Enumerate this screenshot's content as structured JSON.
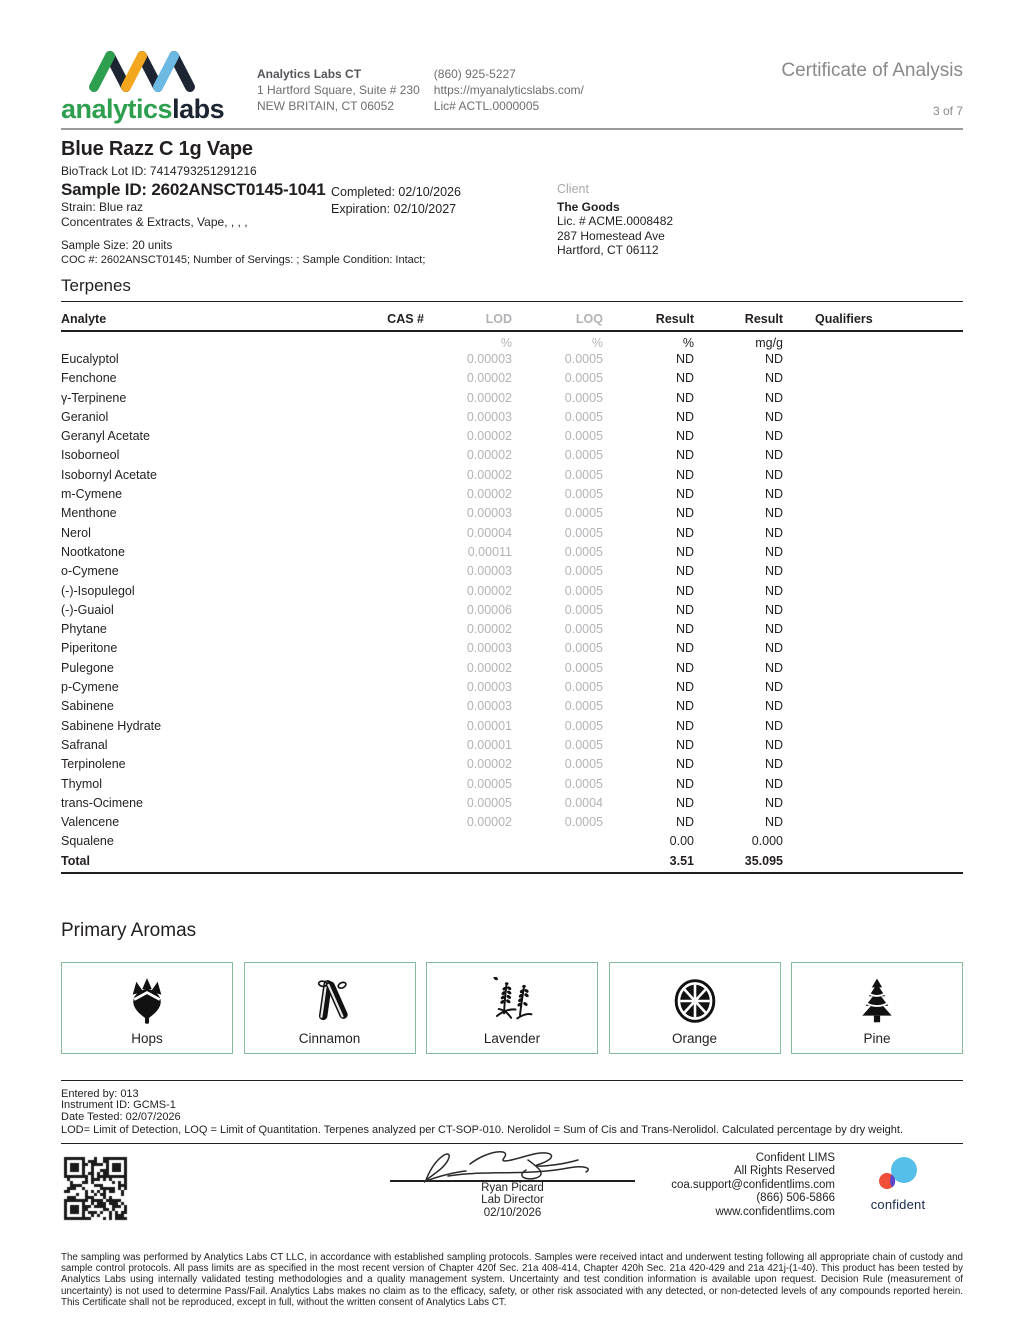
{
  "header": {
    "brand_green": "analytics",
    "brand_dark": "labs",
    "lab_name": "Analytics Labs CT",
    "address1": "1 Hartford Square, Suite # 230",
    "address2": "NEW BRITAIN, CT 06052",
    "phone": "(860) 925-5227",
    "website": "https://myanalyticslabs.com/",
    "license": "Lic# ACTL.0000005",
    "doc_title": "Certificate of Analysis",
    "page_number": "3 of 7"
  },
  "sample": {
    "product_name": "Blue Razz C 1g Vape",
    "biotrack": "BioTrack Lot ID: 7414793251291216",
    "sample_id": "Sample ID: 2602ANSCT0145-1041",
    "strain": "Strain: Blue raz",
    "category": "Concentrates & Extracts, Vape, , , ,",
    "completed": "Completed: 02/10/2026",
    "expiration": "Expiration: 02/10/2027",
    "sample_size": "Sample Size: 20 units",
    "coc": "COC #: 2602ANSCT0145; Number of Servings: ; Sample Condition: Intact;"
  },
  "client": {
    "label": "Client",
    "name": "The Goods",
    "license": "Lic. # ACME.0008482",
    "address1": "287 Homestead Ave",
    "address2": "Hartford, CT 06112"
  },
  "terpenes": {
    "section_title": "Terpenes",
    "col_analyte": "Analyte",
    "col_cas": "CAS #",
    "col_lod": "LOD",
    "col_loq": "LOQ",
    "col_result_pct": "Result",
    "col_result_mgg": "Result",
    "col_qualifiers": "Qualifiers",
    "unit_lod": "%",
    "unit_loq": "%",
    "unit_result_pct": "%",
    "unit_result_mgg": "mg/g",
    "rows": [
      {
        "analyte": "Eucalyptol",
        "cas": "",
        "lod": "0.00003",
        "loq": "0.0005",
        "result_pct": "ND",
        "result_mgg": "ND",
        "qualifiers": ""
      },
      {
        "analyte": "Fenchone",
        "cas": "",
        "lod": "0.00002",
        "loq": "0.0005",
        "result_pct": "ND",
        "result_mgg": "ND",
        "qualifiers": ""
      },
      {
        "analyte": "γ-Terpinene",
        "cas": "",
        "lod": "0.00002",
        "loq": "0.0005",
        "result_pct": "ND",
        "result_mgg": "ND",
        "qualifiers": ""
      },
      {
        "analyte": "Geraniol",
        "cas": "",
        "lod": "0.00003",
        "loq": "0.0005",
        "result_pct": "ND",
        "result_mgg": "ND",
        "qualifiers": ""
      },
      {
        "analyte": "Geranyl Acetate",
        "cas": "",
        "lod": "0.00002",
        "loq": "0.0005",
        "result_pct": "ND",
        "result_mgg": "ND",
        "qualifiers": ""
      },
      {
        "analyte": "Isoborneol",
        "cas": "",
        "lod": "0.00002",
        "loq": "0.0005",
        "result_pct": "ND",
        "result_mgg": "ND",
        "qualifiers": ""
      },
      {
        "analyte": "Isobornyl Acetate",
        "cas": "",
        "lod": "0.00002",
        "loq": "0.0005",
        "result_pct": "ND",
        "result_mgg": "ND",
        "qualifiers": ""
      },
      {
        "analyte": "m-Cymene",
        "cas": "",
        "lod": "0.00002",
        "loq": "0.0005",
        "result_pct": "ND",
        "result_mgg": "ND",
        "qualifiers": ""
      },
      {
        "analyte": "Menthone",
        "cas": "",
        "lod": "0.00003",
        "loq": "0.0005",
        "result_pct": "ND",
        "result_mgg": "ND",
        "qualifiers": ""
      },
      {
        "analyte": "Nerol",
        "cas": "",
        "lod": "0.00004",
        "loq": "0.0005",
        "result_pct": "ND",
        "result_mgg": "ND",
        "qualifiers": ""
      },
      {
        "analyte": "Nootkatone",
        "cas": "",
        "lod": "0.00011",
        "loq": "0.0005",
        "result_pct": "ND",
        "result_mgg": "ND",
        "qualifiers": ""
      },
      {
        "analyte": "o-Cymene",
        "cas": "",
        "lod": "0.00003",
        "loq": "0.0005",
        "result_pct": "ND",
        "result_mgg": "ND",
        "qualifiers": ""
      },
      {
        "analyte": "(-)-Isopulegol",
        "cas": "",
        "lod": "0.00002",
        "loq": "0.0005",
        "result_pct": "ND",
        "result_mgg": "ND",
        "qualifiers": ""
      },
      {
        "analyte": "(-)-Guaiol",
        "cas": "",
        "lod": "0.00006",
        "loq": "0.0005",
        "result_pct": "ND",
        "result_mgg": "ND",
        "qualifiers": ""
      },
      {
        "analyte": "Phytane",
        "cas": "",
        "lod": "0.00002",
        "loq": "0.0005",
        "result_pct": "ND",
        "result_mgg": "ND",
        "qualifiers": ""
      },
      {
        "analyte": "Piperitone",
        "cas": "",
        "lod": "0.00003",
        "loq": "0.0005",
        "result_pct": "ND",
        "result_mgg": "ND",
        "qualifiers": ""
      },
      {
        "analyte": "Pulegone",
        "cas": "",
        "lod": "0.00002",
        "loq": "0.0005",
        "result_pct": "ND",
        "result_mgg": "ND",
        "qualifiers": ""
      },
      {
        "analyte": "p-Cymene",
        "cas": "",
        "lod": "0.00003",
        "loq": "0.0005",
        "result_pct": "ND",
        "result_mgg": "ND",
        "qualifiers": ""
      },
      {
        "analyte": "Sabinene",
        "cas": "",
        "lod": "0.00003",
        "loq": "0.0005",
        "result_pct": "ND",
        "result_mgg": "ND",
        "qualifiers": ""
      },
      {
        "analyte": "Sabinene Hydrate",
        "cas": "",
        "lod": "0.00001",
        "loq": "0.0005",
        "result_pct": "ND",
        "result_mgg": "ND",
        "qualifiers": ""
      },
      {
        "analyte": "Safranal",
        "cas": "",
        "lod": "0.00001",
        "loq": "0.0005",
        "result_pct": "ND",
        "result_mgg": "ND",
        "qualifiers": ""
      },
      {
        "analyte": "Terpinolene",
        "cas": "",
        "lod": "0.00002",
        "loq": "0.0005",
        "result_pct": "ND",
        "result_mgg": "ND",
        "qualifiers": ""
      },
      {
        "analyte": "Thymol",
        "cas": "",
        "lod": "0.00005",
        "loq": "0.0005",
        "result_pct": "ND",
        "result_mgg": "ND",
        "qualifiers": ""
      },
      {
        "analyte": "trans-Ocimene",
        "cas": "",
        "lod": "0.00005",
        "loq": "0.0004",
        "result_pct": "ND",
        "result_mgg": "ND",
        "qualifiers": ""
      },
      {
        "analyte": "Valencene",
        "cas": "",
        "lod": "0.00002",
        "loq": "0.0005",
        "result_pct": "ND",
        "result_mgg": "ND",
        "qualifiers": ""
      },
      {
        "analyte": "Squalene",
        "cas": "",
        "lod": "",
        "loq": "",
        "result_pct": "0.00",
        "result_mgg": "0.000",
        "qualifiers": ""
      }
    ],
    "total_label": "Total",
    "total_pct": "3.51",
    "total_mgg": "35.095"
  },
  "aromas": {
    "section_title": "Primary Aromas",
    "items": [
      {
        "label": "Hops",
        "icon": "hops-icon"
      },
      {
        "label": "Cinnamon",
        "icon": "cinnamon-icon"
      },
      {
        "label": "Lavender",
        "icon": "lavender-icon"
      },
      {
        "label": "Orange",
        "icon": "orange-icon"
      },
      {
        "label": "Pine",
        "icon": "pine-icon"
      }
    ]
  },
  "footer": {
    "entered_by": "Entered by: 013",
    "instrument": "Instrument ID: GCMS-1",
    "date_tested": "Date Tested: 02/07/2026",
    "note": "LOD= Limit of Detection, LOQ = Limit of Quantitation. Terpenes analyzed per CT-SOP-010. Nerolidol = Sum of Cis and Trans-Nerolidol. Calculated percentage by dry weight.",
    "signer_name": "Ryan Picard",
    "signer_title": "Lab Director",
    "sign_date": "02/10/2026",
    "lims_line1": "Confident LIMS",
    "lims_line2": "All Rights Reserved",
    "lims_line3": "coa.support@confidentlims.com",
    "lims_line4": "(866) 506-5866",
    "lims_line5": "www.confidentlims.com",
    "lims_brand": "confident",
    "disclaimer": "The sampling was performed by Analytics Labs CT LLC, in accordance with established sampling protocols. Samples were received intact and underwent testing following all appropriate chain of custody and sample control protocols. All pass limits are as specified in the most recent version of Chapter 420f Sec. 21a 408-414, Chapter 420h Sec. 21a 420-429 and 21a 421j-(1-40). This product has been tested by Analytics Labs using internally validated testing methodologies and a quality management system. Uncertainty and test condition information is available upon request. Decision Rule (measurement of uncertainty) is not used to determine Pass/Fail. Analytics Labs makes no claim as to the efficacy, safety, or other risk associated with any detected, or non-detected levels of any compounds reported herein. This Certificate shall not be reproduced, except in full, without the written consent of Analytics Labs CT.",
    "colors": {
      "brand_green": "#2e9e4f",
      "logo_orange": "#f2a71f",
      "logo_blue": "#6cb9e3",
      "logo_dark": "#1e2532",
      "aroma_border": "#85bb9d",
      "confident_blue": "#55bfe9",
      "confident_red": "#f04e37",
      "confident_purple": "#5b48c9"
    }
  }
}
